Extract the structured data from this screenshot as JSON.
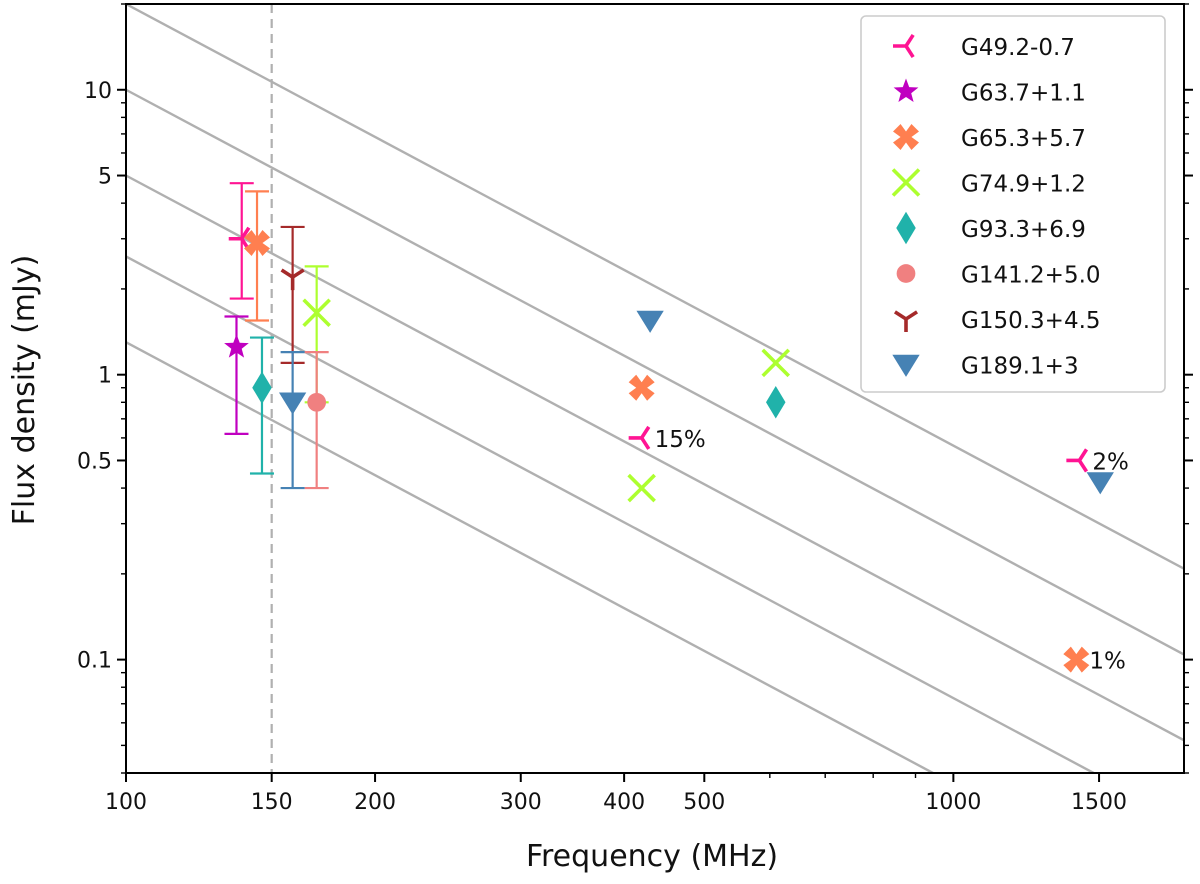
{
  "chart_data": {
    "type": "scatter",
    "xscale": "log",
    "yscale": "log",
    "xlabel": "Frequency (MHz)",
    "ylabel": "Flux density (mJy)",
    "xlim": [
      100,
      1900
    ],
    "ylim": [
      0.04,
      20
    ],
    "xticks": [
      {
        "value": 100,
        "label": "100"
      },
      {
        "value": 150,
        "label": "150"
      },
      {
        "value": 200,
        "label": "200"
      },
      {
        "value": 300,
        "label": "300"
      },
      {
        "value": 400,
        "label": "400"
      },
      {
        "value": 500,
        "label": "500"
      },
      {
        "value": 1000,
        "label": "1000"
      },
      {
        "value": 1500,
        "label": "1500"
      }
    ],
    "yticks": [
      {
        "value": 0.1,
        "label": "0.1"
      },
      {
        "value": 0.5,
        "label": "0.5"
      },
      {
        "value": 1,
        "label": "1"
      },
      {
        "value": 5,
        "label": "5"
      },
      {
        "value": 10,
        "label": "10"
      }
    ],
    "vline": {
      "x": 150,
      "color": "#b0b0b0",
      "style": "dashed"
    },
    "reference_lines": {
      "color": "#b0b0b0",
      "spectral_index": -1.55,
      "anchors_at_100MHz": [
        20,
        10,
        5,
        2.6,
        1.3
      ]
    },
    "series": [
      {
        "name": "G49.2-0.7",
        "marker": "tri_left",
        "color": "#ff1493",
        "points": [
          {
            "x": 138,
            "y": 3.0,
            "ylow": 1.85,
            "yhigh": 4.7
          },
          {
            "x": 420,
            "y": 0.6
          },
          {
            "x": 1420,
            "y": 0.5
          }
        ]
      },
      {
        "name": "G63.7+1.1",
        "marker": "star",
        "color": "#c000c0",
        "points": [
          {
            "x": 136,
            "y": 1.25,
            "ylow": 0.62,
            "yhigh": 1.6
          }
        ]
      },
      {
        "name": "G65.3+5.7",
        "marker": "xfilled",
        "color": "#ff7f50",
        "points": [
          {
            "x": 144,
            "y": 2.9,
            "ylow": 1.55,
            "yhigh": 4.4
          },
          {
            "x": 420,
            "y": 0.9
          },
          {
            "x": 1408,
            "y": 0.1
          }
        ]
      },
      {
        "name": "G74.9+1.2",
        "marker": "x",
        "color": "#adff2f",
        "points": [
          {
            "x": 170,
            "y": 1.65,
            "ylow": 0.8,
            "yhigh": 2.4
          },
          {
            "x": 420,
            "y": 0.4
          },
          {
            "x": 610,
            "y": 1.1
          }
        ]
      },
      {
        "name": "G93.3+6.9",
        "marker": "diamond",
        "color": "#20b2aa",
        "points": [
          {
            "x": 146,
            "y": 0.9,
            "ylow": 0.45,
            "yhigh": 1.35
          },
          {
            "x": 610,
            "y": 0.8
          }
        ]
      },
      {
        "name": "G141.2+5.0",
        "marker": "circle",
        "color": "#f08080",
        "points": [
          {
            "x": 170,
            "y": 0.8,
            "ylow": 0.4,
            "yhigh": 1.2
          }
        ]
      },
      {
        "name": "G150.3+4.5",
        "marker": "tri_down",
        "color": "#a52a2a",
        "points": [
          {
            "x": 159,
            "y": 2.2,
            "ylow": 1.1,
            "yhigh": 3.3
          }
        ]
      },
      {
        "name": "G189.1+3",
        "marker": "triangle_down",
        "color": "#4682b4",
        "points": [
          {
            "x": 159,
            "y": 0.8,
            "ylow": 0.4,
            "yhigh": 1.2
          },
          {
            "x": 430,
            "y": 1.55
          },
          {
            "x": 1505,
            "y": 0.42
          }
        ]
      }
    ],
    "annotations": [
      {
        "text": "15%",
        "x": 420,
        "y": 0.6
      },
      {
        "text": "2%",
        "x": 1420,
        "y": 0.5
      },
      {
        "text": "1%",
        "x": 1408,
        "y": 0.1
      }
    ],
    "legend_position": "top-right"
  }
}
